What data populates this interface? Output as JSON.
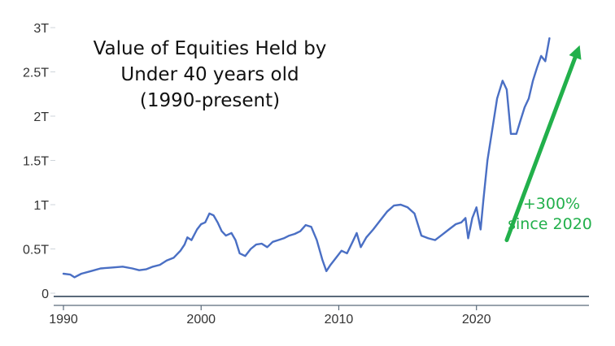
{
  "chart_data": {
    "type": "line",
    "title": [
      "Value of Equities Held by",
      "Under 40 years old",
      "(1990-present)"
    ],
    "xlabel": "",
    "ylabel": "",
    "xlim": [
      1990,
      2029
    ],
    "ylim": [
      0,
      3
    ],
    "x_ticks": [
      1990,
      2000,
      2010,
      2020
    ],
    "x_tick_labels": [
      "1990",
      "2000",
      "2010",
      "2020"
    ],
    "y_ticks": [
      0,
      0.5,
      1,
      1.5,
      2,
      2.5,
      3
    ],
    "y_tick_labels": [
      "0",
      "0.5T",
      "1T",
      "1.5T",
      "2T",
      "2.5T",
      "3T"
    ],
    "grid": false,
    "colors": {
      "line": "#4a6fc4",
      "annotation": "#22b04b",
      "axis": "#5a6a7a"
    },
    "series": [
      {
        "values": [
          [
            1990.0,
            0.22
          ],
          [
            1990.5,
            0.21
          ],
          [
            1990.8,
            0.18
          ],
          [
            1991.3,
            0.22
          ],
          [
            1992.0,
            0.25
          ],
          [
            1992.7,
            0.28
          ],
          [
            1993.5,
            0.29
          ],
          [
            1994.3,
            0.3
          ],
          [
            1995.0,
            0.28
          ],
          [
            1995.5,
            0.26
          ],
          [
            1996.0,
            0.27
          ],
          [
            1996.5,
            0.3
          ],
          [
            1997.0,
            0.32
          ],
          [
            1997.5,
            0.37
          ],
          [
            1998.0,
            0.4
          ],
          [
            1998.5,
            0.48
          ],
          [
            1998.8,
            0.55
          ],
          [
            1999.0,
            0.63
          ],
          [
            1999.3,
            0.6
          ],
          [
            1999.7,
            0.72
          ],
          [
            2000.0,
            0.78
          ],
          [
            2000.3,
            0.8
          ],
          [
            2000.6,
            0.9
          ],
          [
            2000.9,
            0.88
          ],
          [
            2001.2,
            0.8
          ],
          [
            2001.5,
            0.7
          ],
          [
            2001.8,
            0.65
          ],
          [
            2002.2,
            0.68
          ],
          [
            2002.5,
            0.6
          ],
          [
            2002.8,
            0.45
          ],
          [
            2003.2,
            0.42
          ],
          [
            2003.6,
            0.5
          ],
          [
            2004.0,
            0.55
          ],
          [
            2004.4,
            0.56
          ],
          [
            2004.8,
            0.52
          ],
          [
            2005.2,
            0.58
          ],
          [
            2005.6,
            0.6
          ],
          [
            2006.0,
            0.62
          ],
          [
            2006.4,
            0.65
          ],
          [
            2006.8,
            0.67
          ],
          [
            2007.2,
            0.7
          ],
          [
            2007.6,
            0.77
          ],
          [
            2008.0,
            0.75
          ],
          [
            2008.4,
            0.6
          ],
          [
            2008.8,
            0.38
          ],
          [
            2009.1,
            0.25
          ],
          [
            2009.4,
            0.32
          ],
          [
            2009.8,
            0.4
          ],
          [
            2010.2,
            0.48
          ],
          [
            2010.6,
            0.45
          ],
          [
            2011.0,
            0.58
          ],
          [
            2011.3,
            0.68
          ],
          [
            2011.6,
            0.52
          ],
          [
            2012.0,
            0.63
          ],
          [
            2012.5,
            0.72
          ],
          [
            2013.0,
            0.82
          ],
          [
            2013.5,
            0.92
          ],
          [
            2014.0,
            0.99
          ],
          [
            2014.5,
            1.0
          ],
          [
            2015.0,
            0.97
          ],
          [
            2015.5,
            0.9
          ],
          [
            2016.0,
            0.65
          ],
          [
            2016.5,
            0.62
          ],
          [
            2017.0,
            0.6
          ],
          [
            2017.5,
            0.66
          ],
          [
            2018.0,
            0.72
          ],
          [
            2018.5,
            0.78
          ],
          [
            2018.9,
            0.8
          ],
          [
            2019.2,
            0.85
          ],
          [
            2019.4,
            0.62
          ],
          [
            2019.7,
            0.85
          ],
          [
            2020.0,
            0.97
          ],
          [
            2020.3,
            0.72
          ],
          [
            2020.5,
            1.05
          ],
          [
            2020.8,
            1.5
          ],
          [
            2021.2,
            1.9
          ],
          [
            2021.5,
            2.2
          ],
          [
            2021.9,
            2.4
          ],
          [
            2022.2,
            2.3
          ],
          [
            2022.5,
            1.8
          ],
          [
            2022.9,
            1.8
          ],
          [
            2023.2,
            1.95
          ],
          [
            2023.5,
            2.1
          ],
          [
            2023.8,
            2.2
          ],
          [
            2024.1,
            2.4
          ],
          [
            2024.4,
            2.55
          ],
          [
            2024.7,
            2.68
          ],
          [
            2025.0,
            2.62
          ],
          [
            2025.3,
            2.88
          ]
        ]
      }
    ],
    "annotation": {
      "lines": [
        "+300%",
        "since 2020"
      ],
      "arrow_from": [
        2022.2,
        0.6
      ],
      "arrow_to": [
        2027.5,
        2.8
      ]
    }
  }
}
